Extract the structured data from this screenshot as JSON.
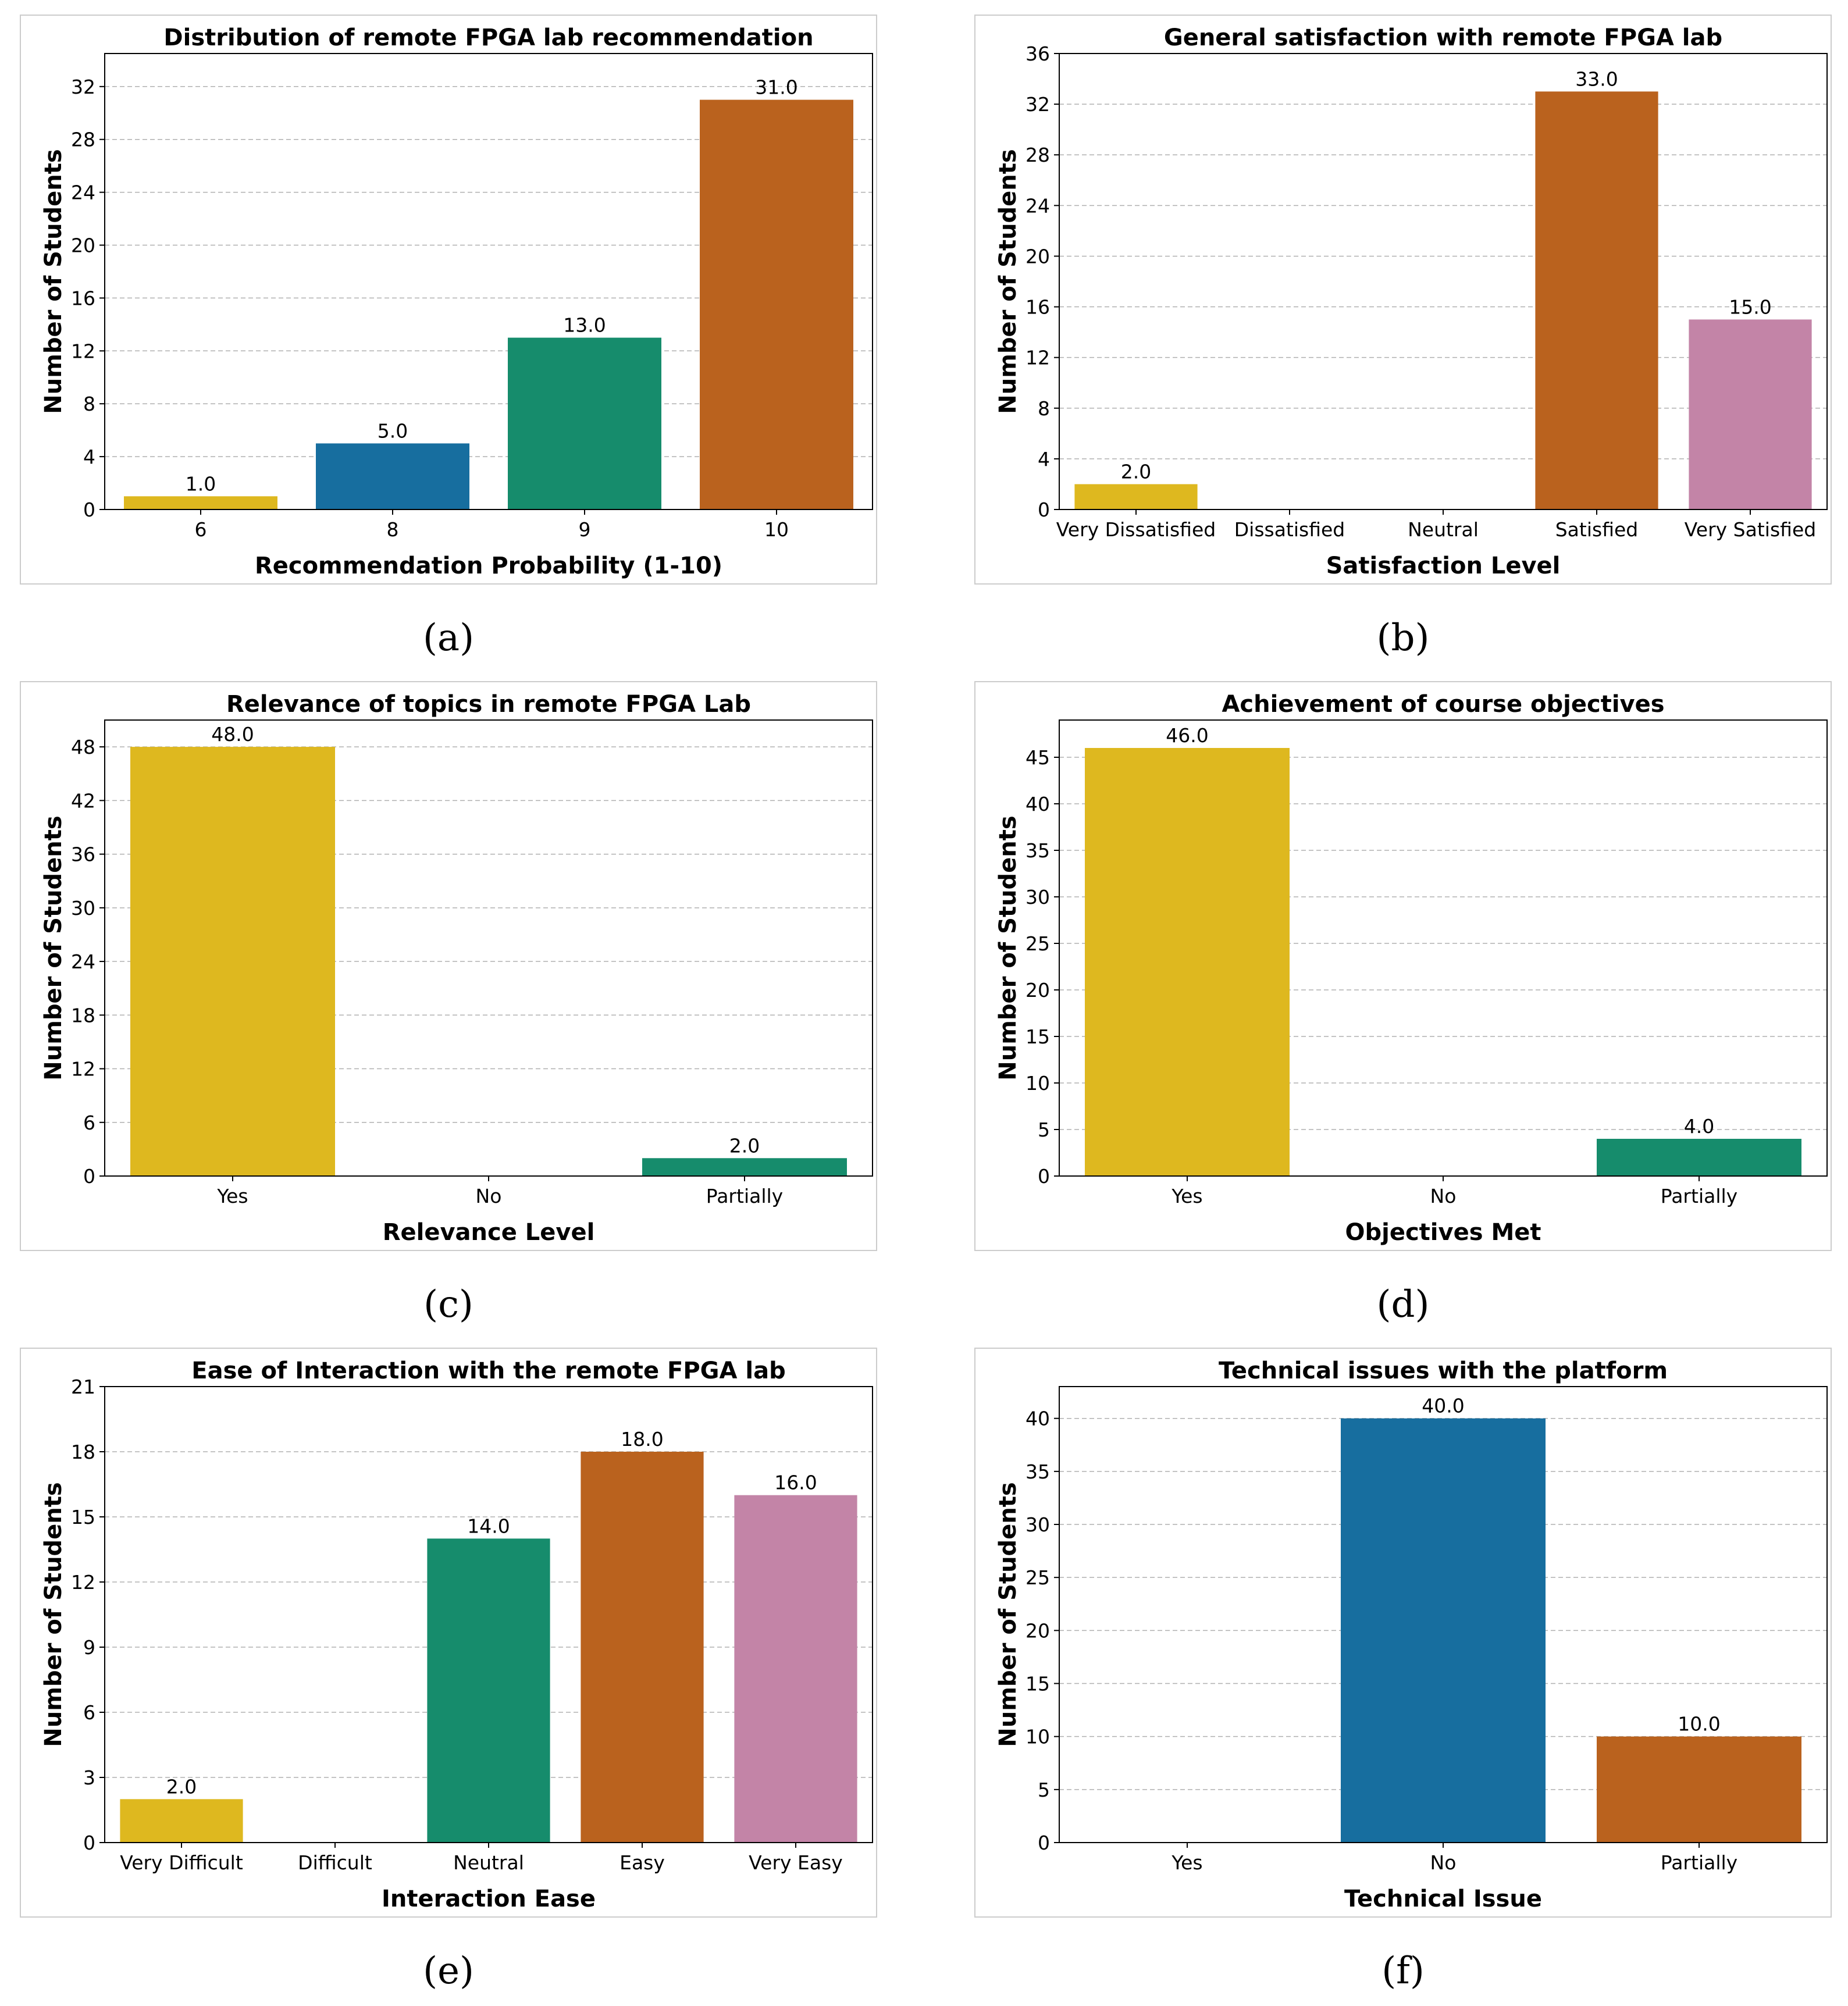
{
  "captions": [
    "(a)",
    "(b)",
    "(c)",
    "(d)",
    "(e)",
    "(f)"
  ],
  "chart_data": [
    {
      "type": "bar",
      "title": "Distribution of remote FPGA lab recommendation",
      "xlabel": "Recommendation Probability (1-10)",
      "ylabel": "Number of Students",
      "categories": [
        "6",
        "8",
        "9",
        "10"
      ],
      "values": [
        1.0,
        5.0,
        13.0,
        31.0
      ],
      "value_labels": [
        "1.0",
        "5.0",
        "13.0",
        "31.0"
      ],
      "colors": [
        "#DEB81F",
        "#176E9F",
        "#168C6C",
        "#BA621E"
      ],
      "ylim": [
        0,
        34.5
      ],
      "yticks": [
        0,
        4,
        8,
        12,
        16,
        20,
        24,
        28,
        32
      ],
      "grid": "y-dashed"
    },
    {
      "type": "bar",
      "title": "General satisfaction with remote FPGA lab",
      "xlabel": "Satisfaction Level",
      "ylabel": "Number of Students",
      "categories": [
        "Very Dissatisfied",
        "Dissatisfied",
        "Neutral",
        "Satisfied",
        "Very Satisfied"
      ],
      "values": [
        2.0,
        0,
        0,
        33.0,
        15.0
      ],
      "value_labels": [
        "2.0",
        "",
        "",
        "33.0",
        "15.0"
      ],
      "colors": [
        "#DEB81F",
        "#176E9F",
        "#168C6C",
        "#BA621E",
        "#C384A7"
      ],
      "ylim": [
        0,
        36
      ],
      "yticks": [
        0,
        4,
        8,
        12,
        16,
        20,
        24,
        28,
        32,
        36
      ],
      "grid": "y-dashed"
    },
    {
      "type": "bar",
      "title": "Relevance of topics in remote FPGA Lab",
      "xlabel": "Relevance Level",
      "ylabel": "Number of Students",
      "categories": [
        "Yes",
        "No",
        "Partially"
      ],
      "values": [
        48.0,
        0,
        2.0
      ],
      "value_labels": [
        "48.0",
        "",
        "2.0"
      ],
      "colors": [
        "#DEB81F",
        "#176E9F",
        "#168C6C"
      ],
      "ylim": [
        0,
        51
      ],
      "yticks": [
        0,
        6,
        12,
        18,
        24,
        30,
        36,
        42,
        48
      ],
      "grid": "y-dashed"
    },
    {
      "type": "bar",
      "title": "Achievement of course objectives",
      "xlabel": "Objectives Met",
      "ylabel": "Number of Students",
      "categories": [
        "Yes",
        "No",
        "Partially"
      ],
      "values": [
        46.0,
        0,
        4.0
      ],
      "value_labels": [
        "46.0",
        "",
        "4.0"
      ],
      "colors": [
        "#DEB81F",
        "#176E9F",
        "#168C6C"
      ],
      "ylim": [
        0,
        49
      ],
      "yticks": [
        0,
        5,
        10,
        15,
        20,
        25,
        30,
        35,
        40,
        45
      ],
      "grid": "y-dashed"
    },
    {
      "type": "bar",
      "title": "Ease of Interaction with the remote FPGA lab",
      "xlabel": "Interaction Ease",
      "ylabel": "Number of Students",
      "categories": [
        "Very Difficult",
        "Difficult",
        "Neutral",
        "Easy",
        "Very Easy"
      ],
      "values": [
        2.0,
        0,
        14.0,
        18.0,
        16.0
      ],
      "value_labels": [
        "2.0",
        "",
        "14.0",
        "18.0",
        "16.0"
      ],
      "colors": [
        "#DEB81F",
        "#176E9F",
        "#168C6C",
        "#BA621E",
        "#C384A7"
      ],
      "ylim": [
        0,
        21
      ],
      "yticks": [
        0,
        3,
        6,
        9,
        12,
        15,
        18,
        21
      ],
      "grid": "y-dashed"
    },
    {
      "type": "bar",
      "title": "Technical issues with the platform",
      "xlabel": "Technical Issue",
      "ylabel": "Number of Students",
      "categories": [
        "Yes",
        "No",
        "Partially"
      ],
      "values": [
        0,
        40.0,
        10.0
      ],
      "value_labels": [
        "",
        "40.0",
        "10.0"
      ],
      "colors": [
        "#DEB81F",
        "#176E9F",
        "#BA621E"
      ],
      "ylim": [
        0,
        43
      ],
      "yticks": [
        0,
        5,
        10,
        15,
        20,
        25,
        30,
        35,
        40
      ],
      "grid": "y-dashed"
    }
  ]
}
